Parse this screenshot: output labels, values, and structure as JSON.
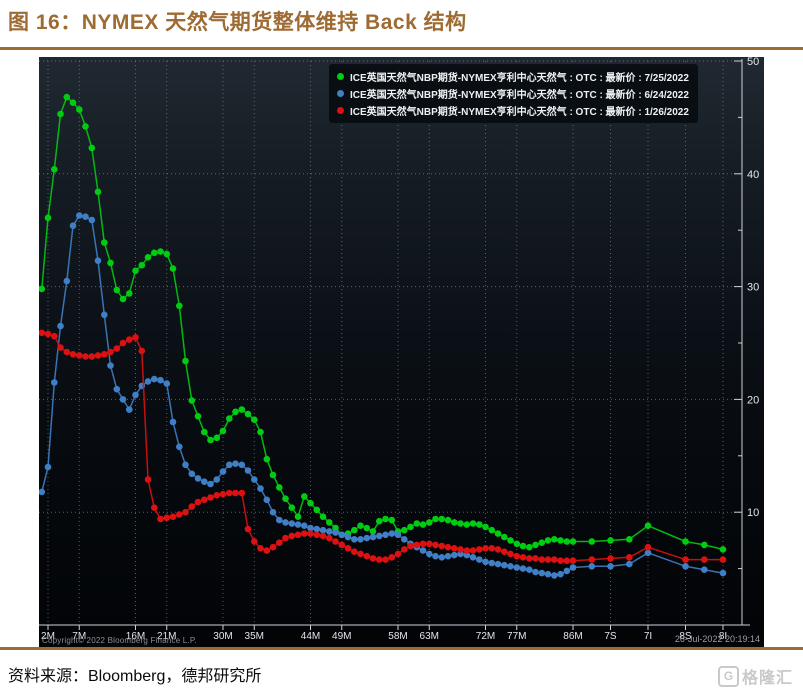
{
  "page": {
    "figure_title": "图 16：NYMEX 天然气期货整体维持 Back 结构",
    "source_line": "资料来源：Bloomberg，德邦研究所",
    "watermark_text": "格隆汇",
    "watermark_icon_letter": "G",
    "accent_color": "#9E6B32"
  },
  "chart_data": {
    "type": "line",
    "title": "",
    "xlabel": "",
    "ylabel": "",
    "copyright": "Copyright© 2022 Bloomberg Finance L.P.",
    "timestamp": "26-Jul-2022 20:19:14",
    "legend_position": "top-right",
    "grid": "dotted",
    "y_axis": {
      "side": "right",
      "major_ticks": [
        10,
        20,
        30,
        40,
        50
      ],
      "minor_ticks": [
        5,
        15,
        25,
        35,
        45
      ],
      "range": [
        0,
        50.4
      ]
    },
    "x_axis": {
      "labels": [
        {
          "text": "2M",
          "month": 2
        },
        {
          "text": "7M",
          "month": 7
        },
        {
          "text": "16M",
          "month": 16
        },
        {
          "text": "21M",
          "month": 21
        },
        {
          "text": "30M",
          "month": 30
        },
        {
          "text": "35M",
          "month": 35
        },
        {
          "text": "44M",
          "month": 44
        },
        {
          "text": "49M",
          "month": 49
        },
        {
          "text": "58M",
          "month": 58
        },
        {
          "text": "63M",
          "month": 63
        },
        {
          "text": "72M",
          "month": 72
        },
        {
          "text": "77M",
          "month": 77
        },
        {
          "text": "86M",
          "month": 86
        },
        {
          "text": "7S",
          "month": 92
        },
        {
          "text": "7I",
          "month": 98
        },
        {
          "text": "8S",
          "month": 104
        },
        {
          "text": "8I",
          "month": 110
        }
      ]
    },
    "x_months": [
      1,
      2,
      3,
      4,
      5,
      6,
      7,
      8,
      9,
      10,
      11,
      12,
      13,
      14,
      15,
      16,
      17,
      18,
      19,
      20,
      21,
      22,
      23,
      24,
      25,
      26,
      27,
      28,
      29,
      30,
      31,
      32,
      33,
      34,
      35,
      36,
      37,
      38,
      39,
      40,
      41,
      42,
      43,
      44,
      45,
      46,
      47,
      48,
      49,
      50,
      51,
      52,
      53,
      54,
      55,
      56,
      57,
      58,
      59,
      60,
      61,
      62,
      63,
      64,
      65,
      66,
      67,
      68,
      69,
      70,
      71,
      72,
      73,
      74,
      75,
      76,
      77,
      78,
      79,
      80,
      81,
      82,
      83,
      84,
      85,
      86,
      89,
      92,
      95,
      98,
      104,
      107,
      110
    ],
    "series": [
      {
        "name": "ICE英国天然气NBP期货-NYMEX亨利中心天然气 : OTC : 最新价 : 7/25/2022",
        "color": "#00CC11",
        "values": [
          29.8,
          36.1,
          40.4,
          45.3,
          46.8,
          46.3,
          45.7,
          44.2,
          42.3,
          38.4,
          33.9,
          32.1,
          29.7,
          28.9,
          29.4,
          31.4,
          31.9,
          32.6,
          33.0,
          33.1,
          32.9,
          31.6,
          28.3,
          23.4,
          19.9,
          18.5,
          17.1,
          16.4,
          16.6,
          17.2,
          18.3,
          18.9,
          19.1,
          18.7,
          18.2,
          17.1,
          14.7,
          13.3,
          12.2,
          11.2,
          10.4,
          9.6,
          11.4,
          10.8,
          10.2,
          9.6,
          9.1,
          8.6,
          8.0,
          8.1,
          8.4,
          8.8,
          8.6,
          8.3,
          9.2,
          9.4,
          9.3,
          8.3,
          8.4,
          8.7,
          9.0,
          8.9,
          9.1,
          9.4,
          9.4,
          9.3,
          9.1,
          9.0,
          8.9,
          9.0,
          8.9,
          8.7,
          8.4,
          8.1,
          7.8,
          7.5,
          7.2,
          7.0,
          6.9,
          7.1,
          7.3,
          7.5,
          7.6,
          7.5,
          7.4,
          7.4,
          7.4,
          7.5,
          7.6,
          8.8,
          7.4,
          7.1,
          6.7
        ]
      },
      {
        "name": "ICE英国天然气NBP期货-NYMEX亨利中心天然气 : OTC : 最新价 : 6/24/2022",
        "color": "#3E7FC6",
        "values": [
          11.8,
          14.0,
          21.5,
          26.5,
          30.5,
          35.4,
          36.3,
          36.2,
          35.9,
          32.3,
          27.5,
          23.0,
          20.9,
          20.0,
          19.1,
          20.4,
          21.2,
          21.6,
          21.8,
          21.7,
          21.4,
          18.0,
          15.8,
          14.2,
          13.4,
          13.0,
          12.7,
          12.5,
          12.9,
          13.6,
          14.2,
          14.3,
          14.2,
          13.7,
          12.9,
          12.1,
          11.1,
          10.0,
          9.3,
          9.1,
          9.0,
          8.9,
          8.8,
          8.6,
          8.5,
          8.4,
          8.3,
          8.2,
          8.0,
          7.8,
          7.6,
          7.6,
          7.7,
          7.8,
          7.9,
          8.0,
          8.1,
          8.0,
          7.6,
          7.2,
          6.9,
          6.6,
          6.3,
          6.1,
          6.0,
          6.1,
          6.2,
          6.3,
          6.2,
          6.0,
          5.8,
          5.6,
          5.5,
          5.4,
          5.3,
          5.2,
          5.1,
          5.0,
          4.9,
          4.7,
          4.6,
          4.5,
          4.4,
          4.5,
          4.8,
          5.1,
          5.2,
          5.2,
          5.4,
          6.4,
          5.2,
          4.9,
          4.6
        ]
      },
      {
        "name": "ICE英国天然气NBP期货-NYMEX亨利中心天然气 : OTC : 最新价 : 1/26/2022",
        "color": "#DD1111",
        "values": [
          25.9,
          25.8,
          25.6,
          24.6,
          24.2,
          24.0,
          23.9,
          23.8,
          23.8,
          23.9,
          24.0,
          24.2,
          24.5,
          25.0,
          25.3,
          25.5,
          24.3,
          12.9,
          10.4,
          9.4,
          9.5,
          9.6,
          9.8,
          10.0,
          10.5,
          10.9,
          11.1,
          11.3,
          11.5,
          11.6,
          11.7,
          11.7,
          11.7,
          8.5,
          7.4,
          6.8,
          6.6,
          6.9,
          7.3,
          7.7,
          7.9,
          8.0,
          8.1,
          8.1,
          8.0,
          7.9,
          7.7,
          7.4,
          7.1,
          6.8,
          6.5,
          6.3,
          6.1,
          5.9,
          5.8,
          5.8,
          6.0,
          6.3,
          6.7,
          7.0,
          7.1,
          7.2,
          7.2,
          7.1,
          7.0,
          6.9,
          6.8,
          6.7,
          6.6,
          6.6,
          6.7,
          6.8,
          6.8,
          6.7,
          6.5,
          6.3,
          6.1,
          6.0,
          5.9,
          5.9,
          5.8,
          5.8,
          5.8,
          5.7,
          5.7,
          5.7,
          5.8,
          5.9,
          6.0,
          6.9,
          5.8,
          5.8,
          5.8
        ]
      }
    ]
  }
}
